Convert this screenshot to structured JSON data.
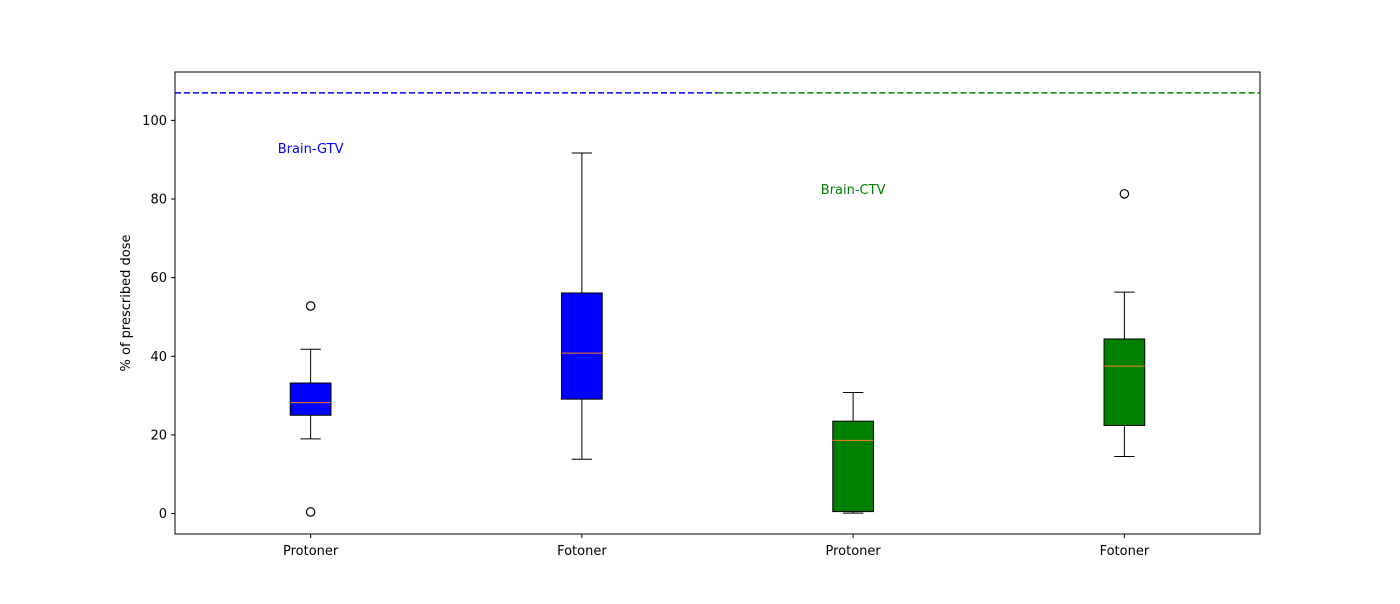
{
  "chart_data": {
    "type": "box",
    "ylabel": "% of prescribed dose",
    "ylim": [
      -5.2,
      112.3
    ],
    "yticks": [
      0,
      20,
      40,
      60,
      80,
      100
    ],
    "grid": false,
    "categories": [
      "Protoner",
      "Fotoner",
      "Protoner",
      "Fotoner"
    ],
    "boxes": [
      {
        "category": "Protoner",
        "group": "Brain-GTV",
        "color": "#0000ff",
        "whisker_low": 19.0,
        "q1": 25.0,
        "median": 28.2,
        "q3": 33.2,
        "whisker_high": 41.8,
        "outliers": [
          52.8,
          0.4
        ]
      },
      {
        "category": "Fotoner",
        "group": "Brain-GTV",
        "color": "#0000ff",
        "whisker_low": 13.8,
        "q1": 29.1,
        "median": 40.8,
        "q3": 56.1,
        "whisker_high": 91.7,
        "outliers": []
      },
      {
        "category": "Protoner",
        "group": "Brain-CTV",
        "color": "#008000",
        "whisker_low": 0.1,
        "q1": 0.5,
        "median": 18.6,
        "q3": 23.5,
        "whisker_high": 30.8,
        "outliers": []
      },
      {
        "category": "Fotoner",
        "group": "Brain-CTV",
        "color": "#008000",
        "whisker_low": 14.5,
        "q1": 22.4,
        "median": 37.5,
        "q3": 44.4,
        "whisker_high": 56.3,
        "outliers": [
          81.3
        ]
      }
    ],
    "reference_lines": [
      {
        "y": 107,
        "from": 0,
        "to": 2,
        "color": "#0000ff",
        "style": "dashed"
      },
      {
        "y": 107,
        "from": 2,
        "to": 4,
        "color": "#008000",
        "style": "dashed"
      }
    ],
    "annotations": [
      {
        "text": "Brain-GTV",
        "x": 0,
        "y": 93,
        "color": "#0000ff"
      },
      {
        "text": "Brain-CTV",
        "x": 2,
        "y": 82.5,
        "color": "#008000"
      }
    ],
    "median_color": "#ff7f0e"
  }
}
